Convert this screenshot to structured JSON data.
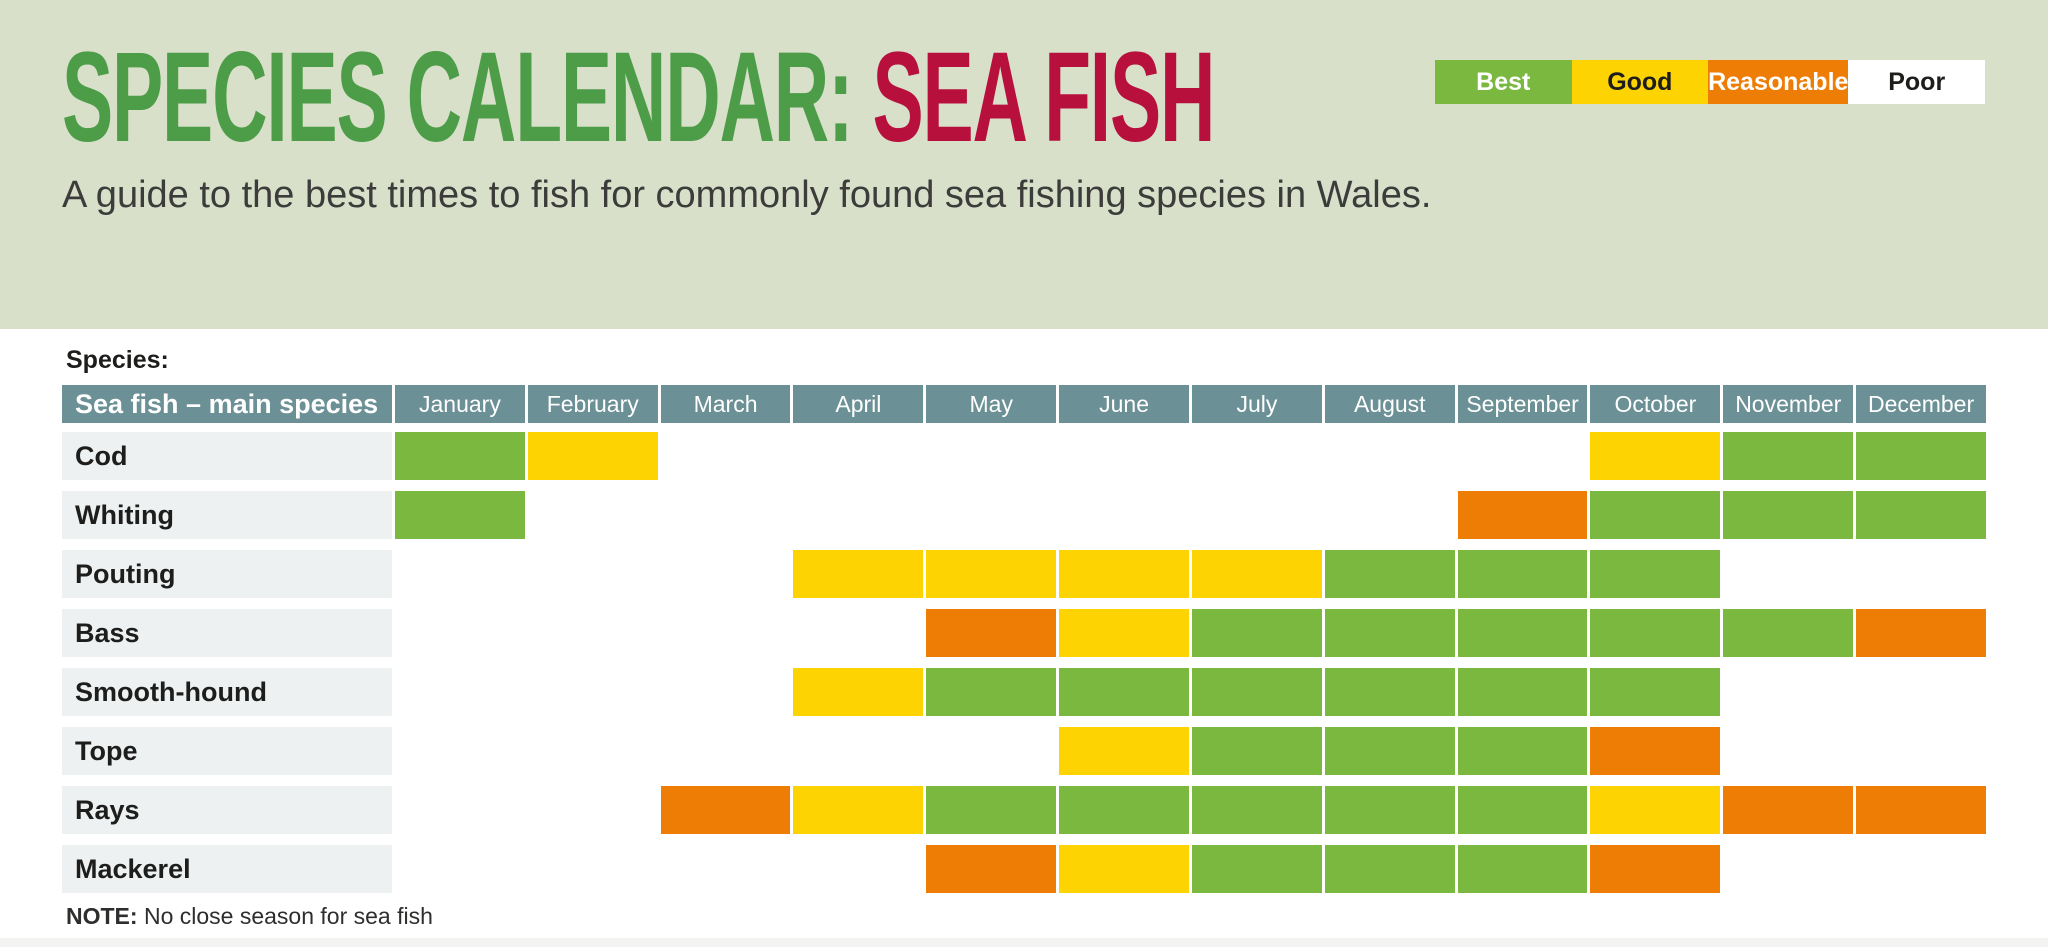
{
  "header": {
    "title_part1": "SPECIES CALENDAR:",
    "title_part2": " SEA FISH",
    "subtitle": "A guide to the best times to fish for commonly found sea fishing species in Wales.",
    "colors": {
      "band_background": "#d8e0ca",
      "title_green": "#4d9c48",
      "title_red": "#b8103d"
    }
  },
  "legend": {
    "items": [
      {
        "label": "Best",
        "color": "#7bb83f",
        "text_color": "#ffffff"
      },
      {
        "label": "Good",
        "color": "#fdd301",
        "text_color": "#1d1d1b"
      },
      {
        "label": "Reasonable",
        "color": "#ed7d05",
        "text_color": "#ffffff"
      },
      {
        "label": "Poor",
        "color": "#ffffff",
        "text_color": "#1d1d1b"
      }
    ]
  },
  "table": {
    "section_label": "Species:",
    "header_label": "Sea fish – main species",
    "header_bg": "#6b9095",
    "months": [
      "January",
      "February",
      "March",
      "April",
      "May",
      "June",
      "July",
      "August",
      "September",
      "October",
      "November",
      "December"
    ],
    "rating_colors": {
      "best": "#7bb83f",
      "good": "#fdd301",
      "reasonable": "#ed7d05",
      "poor": "#ffffff"
    },
    "rows": [
      {
        "species": "Cod",
        "ratings": [
          "best",
          "good",
          "poor",
          "poor",
          "poor",
          "poor",
          "poor",
          "poor",
          "poor",
          "good",
          "best",
          "best"
        ]
      },
      {
        "species": "Whiting",
        "ratings": [
          "best",
          "poor",
          "poor",
          "poor",
          "poor",
          "poor",
          "poor",
          "poor",
          "reasonable",
          "best",
          "best",
          "best"
        ]
      },
      {
        "species": "Pouting",
        "ratings": [
          "poor",
          "poor",
          "poor",
          "good",
          "good",
          "good",
          "good",
          "best",
          "best",
          "best",
          "poor",
          "poor"
        ]
      },
      {
        "species": "Bass",
        "ratings": [
          "poor",
          "poor",
          "poor",
          "poor",
          "reasonable",
          "good",
          "best",
          "best",
          "best",
          "best",
          "best",
          "reasonable"
        ]
      },
      {
        "species": "Smooth-hound",
        "ratings": [
          "poor",
          "poor",
          "poor",
          "good",
          "best",
          "best",
          "best",
          "best",
          "best",
          "best",
          "poor",
          "poor"
        ]
      },
      {
        "species": "Tope",
        "ratings": [
          "poor",
          "poor",
          "poor",
          "poor",
          "poor",
          "good",
          "best",
          "best",
          "best",
          "reasonable",
          "poor",
          "poor"
        ]
      },
      {
        "species": "Rays",
        "ratings": [
          "poor",
          "poor",
          "reasonable",
          "good",
          "best",
          "best",
          "best",
          "best",
          "best",
          "good",
          "reasonable",
          "reasonable"
        ]
      },
      {
        "species": "Mackerel",
        "ratings": [
          "poor",
          "poor",
          "poor",
          "poor",
          "reasonable",
          "good",
          "best",
          "best",
          "best",
          "reasonable",
          "poor",
          "poor"
        ]
      }
    ]
  },
  "note": {
    "label": "NOTE:",
    "text": " No close season for sea fish"
  },
  "chart_data": {
    "type": "heatmap",
    "title": "SPECIES CALENDAR: SEA FISH",
    "subtitle": "A guide to the best times to fish for commonly found sea fishing species in Wales.",
    "x_categories": [
      "January",
      "February",
      "March",
      "April",
      "May",
      "June",
      "July",
      "August",
      "September",
      "October",
      "November",
      "December"
    ],
    "y_categories": [
      "Cod",
      "Whiting",
      "Pouting",
      "Bass",
      "Smooth-hound",
      "Tope",
      "Rays",
      "Mackerel"
    ],
    "legend_entries": [
      "Best",
      "Good",
      "Reasonable",
      "Poor"
    ],
    "legend_position": "top-right",
    "values": [
      [
        "best",
        "good",
        "poor",
        "poor",
        "poor",
        "poor",
        "poor",
        "poor",
        "poor",
        "good",
        "best",
        "best"
      ],
      [
        "best",
        "poor",
        "poor",
        "poor",
        "poor",
        "poor",
        "poor",
        "poor",
        "reasonable",
        "best",
        "best",
        "best"
      ],
      [
        "poor",
        "poor",
        "poor",
        "good",
        "good",
        "good",
        "good",
        "best",
        "best",
        "best",
        "poor",
        "poor"
      ],
      [
        "poor",
        "poor",
        "poor",
        "poor",
        "reasonable",
        "good",
        "best",
        "best",
        "best",
        "best",
        "best",
        "reasonable"
      ],
      [
        "poor",
        "poor",
        "poor",
        "good",
        "best",
        "best",
        "best",
        "best",
        "best",
        "best",
        "poor",
        "poor"
      ],
      [
        "poor",
        "poor",
        "poor",
        "poor",
        "poor",
        "good",
        "best",
        "best",
        "best",
        "reasonable",
        "poor",
        "poor"
      ],
      [
        "poor",
        "poor",
        "reasonable",
        "good",
        "best",
        "best",
        "best",
        "best",
        "best",
        "good",
        "reasonable",
        "reasonable"
      ],
      [
        "poor",
        "poor",
        "poor",
        "poor",
        "reasonable",
        "good",
        "best",
        "best",
        "best",
        "reasonable",
        "poor",
        "poor"
      ]
    ],
    "note": "NOTE: No close season for sea fish"
  }
}
